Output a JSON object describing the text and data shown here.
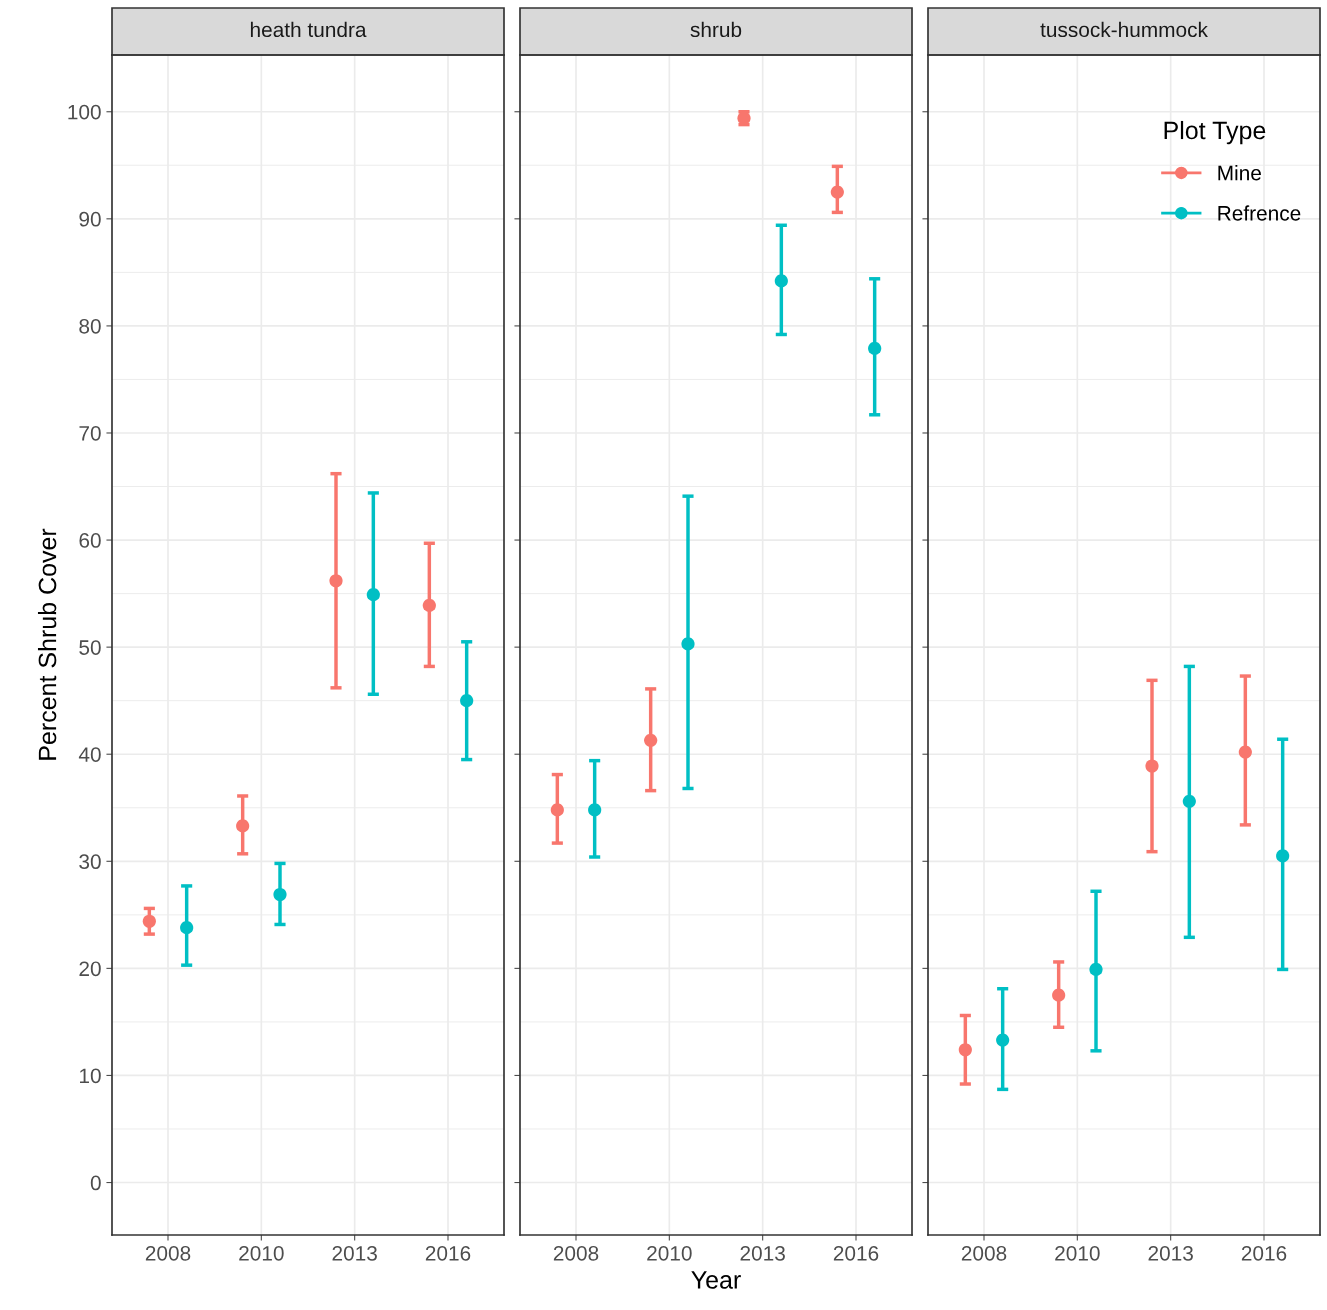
{
  "chart_data": [
    {
      "type": "scatter",
      "title": "heath tundra",
      "ylabel": "Percent Shrub Cover",
      "categories": [
        "2008",
        "2010",
        "2013",
        "2016"
      ],
      "ylim": [
        -4.9,
        105.3
      ],
      "yticks": [
        0,
        10,
        20,
        30,
        40,
        50,
        60,
        70,
        80,
        90,
        100
      ],
      "grid": true,
      "marker": "circle",
      "series": [
        {
          "color": "#f8766d",
          "values": [
            24.4,
            33.3,
            56.2,
            53.9
          ],
          "errors": [
            [
              23.2,
              25.6
            ],
            [
              30.7,
              36.1
            ],
            [
              46.2,
              66.2
            ],
            [
              48.2,
              59.7
            ]
          ]
        },
        {
          "color": "#00bfc4",
          "values": [
            23.8,
            26.9,
            54.9,
            45.0
          ],
          "errors": [
            [
              20.3,
              27.7
            ],
            [
              24.1,
              29.8
            ],
            [
              45.6,
              64.4
            ],
            [
              39.5,
              50.5
            ]
          ]
        }
      ]
    },
    {
      "type": "scatter",
      "title": "shrub",
      "xlabel": "Year",
      "categories": [
        "2008",
        "2010",
        "2013",
        "2016"
      ],
      "ylim": [
        -4.9,
        105.3
      ],
      "yticks": [
        0,
        10,
        20,
        30,
        40,
        50,
        60,
        70,
        80,
        90,
        100
      ],
      "tick_labels": "x",
      "grid": true,
      "marker": "circle",
      "series": [
        {
          "color": "#f8766d",
          "values": [
            34.8,
            41.3,
            99.4,
            92.5
          ],
          "errors": [
            [
              31.7,
              38.1
            ],
            [
              36.6,
              46.1
            ],
            [
              98.8,
              100.0
            ],
            [
              90.6,
              94.9
            ]
          ]
        },
        {
          "color": "#00bfc4",
          "values": [
            34.8,
            50.3,
            84.2,
            77.9
          ],
          "errors": [
            [
              30.4,
              39.4
            ],
            [
              36.8,
              64.1
            ],
            [
              79.2,
              89.4
            ],
            [
              71.7,
              84.4
            ]
          ]
        }
      ]
    },
    {
      "type": "scatter",
      "title": "tussock-hummock",
      "categories": [
        "2008",
        "2010",
        "2013",
        "2016"
      ],
      "ylim": [
        -4.9,
        105.3
      ],
      "yticks": [
        0,
        10,
        20,
        30,
        40,
        50,
        60,
        70,
        80,
        90,
        100
      ],
      "tick_labels": "x",
      "grid": true,
      "marker": "circle",
      "legend": "top right",
      "legend_title": "Plot Type",
      "series": [
        {
          "name": "Mine",
          "color": "#f8766d",
          "values": [
            12.4,
            17.5,
            38.9,
            40.2
          ],
          "errors": [
            [
              9.2,
              15.6
            ],
            [
              14.5,
              20.6
            ],
            [
              30.9,
              46.9
            ],
            [
              33.4,
              47.3
            ]
          ]
        },
        {
          "name": "Refrence",
          "color": "#00bfc4",
          "values": [
            13.3,
            19.9,
            35.6,
            30.5
          ],
          "errors": [
            [
              8.7,
              18.1
            ],
            [
              12.3,
              27.2
            ],
            [
              22.9,
              48.2
            ],
            [
              19.9,
              41.4
            ]
          ]
        }
      ]
    }
  ]
}
